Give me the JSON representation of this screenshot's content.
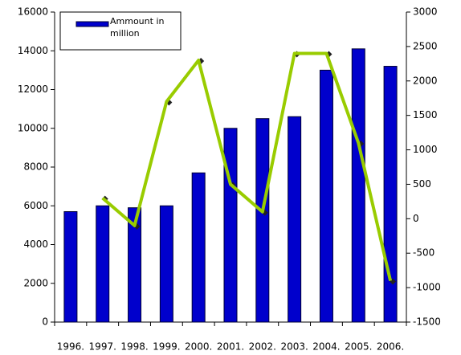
{
  "chart_data": {
    "type": "bar-line",
    "categories": [
      "1996.",
      "1997.",
      "1998.",
      "1999.",
      "2000.",
      "2001.",
      "2002.",
      "2003.",
      "2004.",
      "2005.",
      "2006."
    ],
    "series": [
      {
        "name": "Ammount in million",
        "color": "#0000cc",
        "values": [
          5700,
          6000,
          5900,
          6000,
          7700,
          10000,
          10500,
          10600,
          13000,
          14100,
          13200
        ]
      },
      {
        "color": "#99cc00",
        "axis": "y2",
        "values": [
          null,
          300,
          -100,
          1700,
          2300,
          500,
          100,
          2400,
          2400,
          1100,
          -900
        ]
      }
    ],
    "ylim": [
      0,
      16000
    ],
    "yticks": [
      0,
      2000,
      4000,
      6000,
      8000,
      10000,
      12000,
      14000,
      16000
    ],
    "y2lim": [
      -1500,
      3000
    ],
    "y2ticks": [
      -1500,
      -1000,
      -500,
      0,
      500,
      1000,
      1500,
      2000,
      2500,
      3000
    ],
    "grid": false,
    "legend": "top-left"
  }
}
